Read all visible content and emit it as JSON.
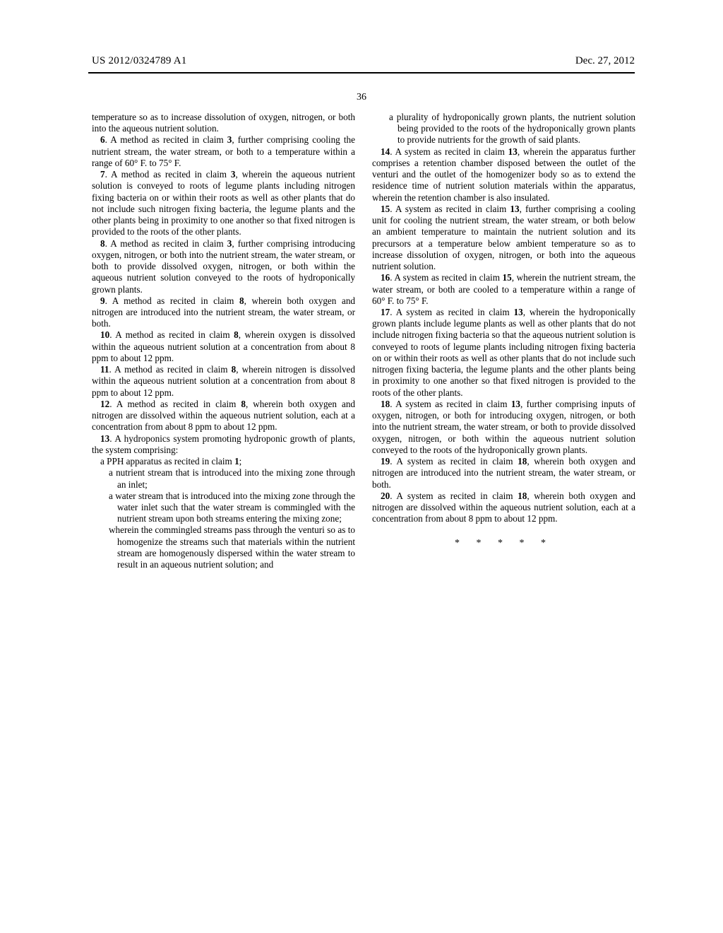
{
  "header": {
    "publicationNumber": "US 2012/0324789 A1",
    "date": "Dec. 27, 2012"
  },
  "pageNumber": "36",
  "column1": {
    "p1": "temperature so as to increase dissolution of oxygen, nitrogen, or both into the aqueous nutrient solution.",
    "c6n": "6",
    "c6": ". A method as recited in claim ",
    "c6r": "3",
    "c6b": ", further comprising cooling the nutrient stream, the water stream, or both to a temperature within a range of 60° F. to 75° F.",
    "c7n": "7",
    "c7": ". A method as recited in claim ",
    "c7r": "3",
    "c7b": ", wherein the aqueous nutrient solution is conveyed to roots of legume plants including nitrogen fixing bacteria on or within their roots as well as other plants that do not include such nitrogen fixing bacteria, the legume plants and the other plants being in proximity to one another so that fixed nitrogen is provided to the roots of the other plants.",
    "c8n": "8",
    "c8": ". A method as recited in claim ",
    "c8r": "3",
    "c8b": ", further comprising introducing oxygen, nitrogen, or both into the nutrient stream, the water stream, or both to provide dissolved oxygen, nitrogen, or both within the aqueous nutrient solution conveyed to the roots of hydroponically grown plants.",
    "c9n": "9",
    "c9": ". A method as recited in claim ",
    "c9r": "8",
    "c9b": ", wherein both oxygen and nitrogen are introduced into the nutrient stream, the water stream, or both.",
    "c10n": "10",
    "c10": ". A method as recited in claim ",
    "c10r": "8",
    "c10b": ", wherein oxygen is dissolved within the aqueous nutrient solution at a concentration from about 8 ppm to about 12 ppm.",
    "c11n": "11",
    "c11": ". A method as recited in claim ",
    "c11r": "8",
    "c11b": ", wherein nitrogen is dissolved within the aqueous nutrient solution at a concentration from about 8 ppm to about 12 ppm.",
    "c12n": "12",
    "c12": ". A method as recited in claim ",
    "c12r": "8",
    "c12b": ", wherein both oxygen and nitrogen are dissolved within the aqueous nutrient solution, each at a concentration from about 8 ppm to about 12 ppm.",
    "c13n": "13",
    "c13": ". A hydroponics system promoting hydroponic growth of plants, the system comprising:",
    "c13a": "a PPH apparatus as recited in claim ",
    "c13ar": "1",
    "c13ae": ";",
    "c13b": "a nutrient stream that is introduced into the mixing zone through an inlet;",
    "c13c": "a water stream that is introduced into the mixing zone through the water inlet such that the water stream is commingled with the nutrient stream upon both streams entering the mixing zone;",
    "c13d": "wherein the commingled streams pass through the venturi so as to homogenize the streams such that materials within the nutrient stream are homogenously dispersed within the water stream to result in an aqueous nutrient solution; and"
  },
  "column2": {
    "c13e": "a plurality of hydroponically grown plants, the nutrient solution being provided to the roots of the hydroponically grown plants to provide nutrients for the growth of said plants.",
    "c14n": "14",
    "c14": ". A system as recited in claim ",
    "c14r": "13",
    "c14b": ", wherein the apparatus further comprises a retention chamber disposed between the outlet of the venturi and the outlet of the homogenizer body so as to extend the residence time of nutrient solution materials within the apparatus, wherein the retention chamber is also insulated.",
    "c15n": "15",
    "c15": ". A system as recited in claim ",
    "c15r": "13",
    "c15b": ", further comprising a cooling unit for cooling the nutrient stream, the water stream, or both below an ambient temperature to maintain the nutrient solution and its precursors at a temperature below ambient temperature so as to increase dissolution of oxygen, nitrogen, or both into the aqueous nutrient solution.",
    "c16n": "16",
    "c16": ". A system as recited in claim ",
    "c16r": "15",
    "c16b": ", wherein the nutrient stream, the water stream, or both are cooled to a temperature within a range of 60° F. to 75° F.",
    "c17n": "17",
    "c17": ". A system as recited in claim ",
    "c17r": "13",
    "c17b": ", wherein the hydroponically grown plants include legume plants as well as other plants that do not include nitrogen fixing bacteria so that the aqueous nutrient solution is conveyed to roots of legume plants including nitrogen fixing bacteria on or within their roots as well as other plants that do not include such nitrogen fixing bacteria, the legume plants and the other plants being in proximity to one another so that fixed nitrogen is provided to the roots of the other plants.",
    "c18n": "18",
    "c18": ". A system as recited in claim ",
    "c18r": "13",
    "c18b": ", further comprising inputs of oxygen, nitrogen, or both for introducing oxygen, nitrogen, or both into the nutrient stream, the water stream, or both to provide dissolved oxygen, nitrogen, or both within the aqueous nutrient solution conveyed to the roots of the hydroponically grown plants.",
    "c19n": "19",
    "c19": ". A system as recited in claim ",
    "c19r": "18",
    "c19b": ", wherein both oxygen and nitrogen are introduced into the nutrient stream, the water stream, or both.",
    "c20n": "20",
    "c20": ". A system as recited in claim ",
    "c20r": "18",
    "c20b": ", wherein both oxygen and nitrogen are dissolved within the aqueous nutrient solution, each at a concentration from about 8 ppm to about 12 ppm.",
    "endMarks": "* * * * *"
  }
}
